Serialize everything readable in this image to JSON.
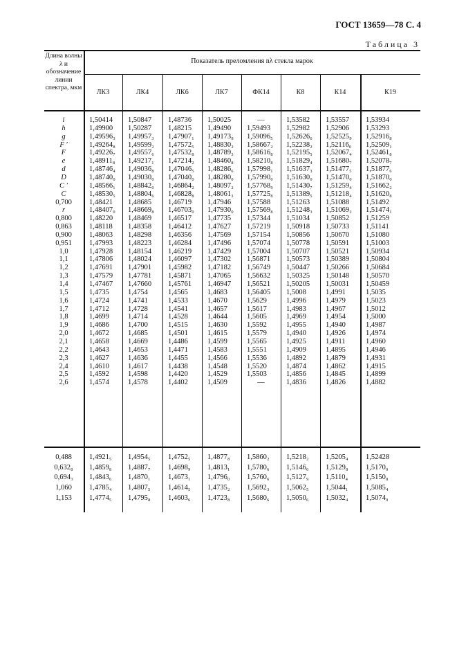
{
  "header": {
    "doc": "ГОСТ 13659—78 С. 4",
    "table_name": "Таблица 3"
  },
  "table": {
    "left_header": "Длина волны λ и обозначение линии спектра, мкм",
    "super_header": "Показатель преломления nλ стекла марок",
    "columns": [
      "ЛК3",
      "ЛК4",
      "ЛК6",
      "ЛК7",
      "ФК14",
      "К8",
      "К14",
      "К19"
    ],
    "block1": [
      {
        "l": "i",
        "it": true,
        "v": [
          "1,50414",
          "1,50847",
          "1,48736",
          "1,50025",
          "—",
          "1,53582",
          "1,53557",
          "1,53934"
        ]
      },
      {
        "l": "h",
        "it": true,
        "v": [
          "1,49900",
          "1,50287",
          "1,48215",
          "1,49490",
          "1,59493",
          "1,52982",
          "1,52906",
          "1,53293"
        ]
      },
      {
        "l": "g",
        "it": true,
        "v": [
          "1,49596₃",
          "1,49957₃",
          "1,47907₁",
          "1,49173₉",
          "1,59096₅",
          "1,52626₆",
          "1,52525₉",
          "1,52916₈"
        ]
      },
      {
        "l": "F ′",
        "it": true,
        "v": [
          "1,49264₈",
          "1,49599₂",
          "1,47572₅",
          "1,48830₂",
          "1,58667₂",
          "1,52238₂",
          "1,52116₀",
          "1,52509₁"
        ]
      },
      {
        "l": "F",
        "it": true,
        "v": [
          "1,49226₇",
          "1,49557₆",
          "1,47532₈",
          "1,48789₃",
          "1,58616₈",
          "1,52195₅",
          "1,52067₄",
          "1,52461₈"
        ]
      },
      {
        "l": "e",
        "it": true,
        "v": [
          "1,48911₈",
          "1,49217₁",
          "1,47214₂",
          "1,48460₈",
          "1,58210₈",
          "1,51829₄",
          "1,51680₇",
          "1,52078₇"
        ]
      },
      {
        "l": "d",
        "it": true,
        "v": [
          "1,48746₄",
          "1,49036₈",
          "1,47046₅",
          "1,48286₆",
          "1,57998₁",
          "1,51637₃",
          "1,51477₅",
          "1,51877₆"
        ]
      },
      {
        "l": "D",
        "it": true,
        "v": [
          "1,48740₀",
          "1,49030₀",
          "1,47040₀",
          "1,48280₀",
          "1,57990₀",
          "1,51630₀",
          "1,51470₀",
          "1,51870₀"
        ]
      },
      {
        "l": "C ′",
        "it": true,
        "v": [
          "1,48566₁",
          "1,48842₀",
          "1,46864₂",
          "1,48097₂",
          "1,57768₉",
          "1,51430₇",
          "1,51259₄",
          "1,51662₂"
        ]
      },
      {
        "l": "C",
        "it": true,
        "v": [
          "1,48530₅",
          "1,48804₆",
          "1,46828₈",
          "1,48061₃",
          "1,57725₈",
          "1,51389₅",
          "1,51218₄",
          "1,51620₈"
        ]
      },
      {
        "l": "0,700",
        "it": false,
        "v": [
          "1,48421",
          "1,48685",
          "1,46719",
          "1,47946",
          "1,57588",
          "1,51263",
          "1,51088",
          "1,51492"
        ]
      },
      {
        "l": "r",
        "it": true,
        "v": [
          "1,48407₀",
          "1,48669₈",
          "1,46703₀",
          "1,47930₀",
          "1,57569₈",
          "1,51248₃",
          "1,51069₂",
          "1,51474₁"
        ]
      },
      {
        "l": "0,800",
        "it": false,
        "v": [
          "1,48220",
          "1,48469",
          "1,46517",
          "1,47735",
          "1,57344",
          "1,51034",
          "1,50852",
          "1,51259"
        ]
      },
      {
        "l": "0,863",
        "it": false,
        "v": [
          "1,48118",
          "1,48358",
          "1,46412",
          "1,47627",
          "1,57219",
          "1,50918",
          "1,50733",
          "1,51141"
        ]
      },
      {
        "l": "0,900",
        "it": false,
        "v": [
          "1,48063",
          "1,48298",
          "1,46356",
          "1,47569",
          "1,57154",
          "1,50856",
          "1,50670",
          "1,51080"
        ]
      },
      {
        "l": "0,951",
        "it": false,
        "v": [
          "1,47993",
          "1,48223",
          "1,46284",
          "1,47496",
          "1,57074",
          "1,50778",
          "1,50591",
          "1,51003"
        ]
      },
      {
        "l": "1,0",
        "it": false,
        "v": [
          "1,47928",
          "1,48154",
          "1,46219",
          "1,47429",
          "1,57004",
          "1,50707",
          "1,50521",
          "1,50934"
        ]
      },
      {
        "l": "1,1",
        "it": false,
        "v": [
          "1,47806",
          "1,48024",
          "1,46097",
          "1,47302",
          "1,56871",
          "1,50573",
          "1,50389",
          "1,50804"
        ]
      },
      {
        "l": "1,2",
        "it": false,
        "v": [
          "1,47691",
          "1,47901",
          "1,45982",
          "1,47182",
          "1,56749",
          "1,50447",
          "1,50266",
          "1,50684"
        ]
      },
      {
        "l": "1,3",
        "it": false,
        "v": [
          "1,47579",
          "1,47781",
          "1,45871",
          "1,47065",
          "1,56632",
          "1,50325",
          "1,50148",
          "1,50570"
        ]
      },
      {
        "l": "1,4",
        "it": false,
        "v": [
          "1,47467",
          "1,47660",
          "1,45761",
          "1,46947",
          "1,56521",
          "1,50205",
          "1,50031",
          "1,50459"
        ]
      },
      {
        "l": "1,5",
        "it": false,
        "v": [
          "1,4735",
          "1,4754",
          "1,4565",
          "1,4683",
          "1,56405",
          "1,5008",
          "1,4991",
          "1,5035"
        ]
      },
      {
        "l": "1,6",
        "it": false,
        "v": [
          "1,4724",
          "1,4741",
          "1,4533",
          "1,4670",
          "1,5629",
          "1,4996",
          "1,4979",
          "1,5023"
        ]
      },
      {
        "l": "1,7",
        "it": false,
        "v": [
          "1,4712",
          "1,4728",
          "1,4541",
          "1,4657",
          "1,5617",
          "1,4983",
          "1,4967",
          "1,5012"
        ]
      },
      {
        "l": "1,8",
        "it": false,
        "v": [
          "1,4699",
          "1,4714",
          "1,4528",
          "1,4644",
          "1,5605",
          "1,4969",
          "1,4954",
          "1,5000"
        ]
      },
      {
        "l": "1,9",
        "it": false,
        "v": [
          "1,4686",
          "1,4700",
          "1,4515",
          "1,4630",
          "1,5592",
          "1,4955",
          "1,4940",
          "1,4987"
        ]
      },
      {
        "l": "2,0",
        "it": false,
        "v": [
          "1,4672",
          "1,4685",
          "1,4501",
          "1,4615",
          "1,5579",
          "1,4940",
          "1,4926",
          "1,4974"
        ]
      },
      {
        "l": "2,1",
        "it": false,
        "v": [
          "1,4658",
          "1,4669",
          "1,4486",
          "1,4599",
          "1,5565",
          "1,4925",
          "1,4911",
          "1,4960"
        ]
      },
      {
        "l": "2,2",
        "it": false,
        "v": [
          "1,4643",
          "1,4653",
          "1,4471",
          "1,4583",
          "1,5551",
          "1,4909",
          "1,4895",
          "1,4946"
        ]
      },
      {
        "l": "2,3",
        "it": false,
        "v": [
          "1,4627",
          "1,4636",
          "1,4455",
          "1,4566",
          "1,5536",
          "1,4892",
          "1,4879",
          "1,4931"
        ]
      },
      {
        "l": "2,4",
        "it": false,
        "v": [
          "1,4610",
          "1,4617",
          "1,4438",
          "1,4548",
          "1,5520",
          "1,4874",
          "1,4862",
          "1,4915"
        ]
      },
      {
        "l": "2,5",
        "it": false,
        "v": [
          "1,4592",
          "1,4598",
          "1,4420",
          "1,4529",
          "1,5503",
          "1,4856",
          "1,4845",
          "1,4899"
        ]
      },
      {
        "l": "2,6",
        "it": false,
        "v": [
          "1,4574",
          "1,4578",
          "1,4402",
          "1,4509",
          "—",
          "1,4836",
          "1,4826",
          "1,4882"
        ]
      }
    ],
    "block2": [
      {
        "l": "0,488",
        "it": false,
        "v": [
          "1,4921₅",
          "1,4954₅",
          "1,4752₅",
          "1,4877₈",
          "1,5860₂",
          "1,5218₂",
          "1,5205₄",
          "1,52428"
        ]
      },
      {
        "l": "0,632₈",
        "it": false,
        "v": [
          "1,4859₈",
          "1,4887₇",
          "1,4698₉",
          "1,4813₁",
          "1,5780₆",
          "1,5146₆",
          "1,5129₈",
          "1,5170₀"
        ]
      },
      {
        "l": "0,694₃",
        "it": false,
        "v": [
          "1,4843₆",
          "1,4870₁",
          "1,4673₁",
          "1,4796₀",
          "1,5760₆",
          "1,5127₉",
          "1,5110₄",
          "1,5150₈"
        ]
      },
      {
        "l": "1,060",
        "it": false,
        "v": [
          "1,4785₄",
          "1,4807₅",
          "1,4614₅",
          "1,4735₂",
          "1,5692₃",
          "1,5062₅",
          "1,5044₁",
          "1,5085₄"
        ]
      },
      {
        "l": "1,153",
        "it": false,
        "v": [
          "1,4774₅",
          "1,4795₈",
          "1,4603₆",
          "1,4723₈",
          "1,5680₆",
          "1,5050₆",
          "1,5032₄",
          "1,5074₀"
        ]
      }
    ]
  }
}
